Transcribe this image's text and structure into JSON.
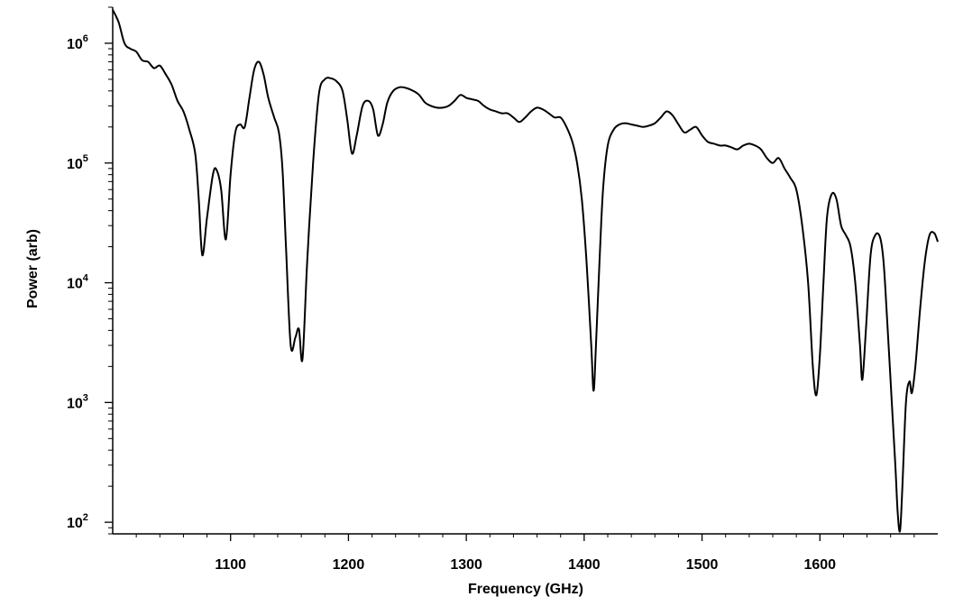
{
  "chart_data": {
    "type": "line",
    "title": "",
    "xlabel": "Frequency (GHz)",
    "ylabel": "Power (arb)",
    "xlim": [
      1000,
      1700
    ],
    "ylim": [
      80,
      2000000
    ],
    "yscale": "log",
    "grid": false,
    "x_ticks": [
      1100,
      1200,
      1300,
      1400,
      1500,
      1600
    ],
    "x_tick_labels": [
      "1100",
      "1200",
      "1300",
      "1400",
      "1500",
      "1600"
    ],
    "y_ticks": [
      {
        "value": 100,
        "base": "10",
        "exp": "2"
      },
      {
        "value": 1000,
        "base": "10",
        "exp": "3"
      },
      {
        "value": 10000,
        "base": "10",
        "exp": "4"
      },
      {
        "value": 100000,
        "base": "10",
        "exp": "5"
      },
      {
        "value": 1000000,
        "base": "10",
        "exp": "6"
      }
    ],
    "series": [
      {
        "color": "#000000",
        "points": [
          [
            1000,
            1900000
          ],
          [
            1005,
            1500000
          ],
          [
            1010,
            1000000
          ],
          [
            1015,
            900000
          ],
          [
            1020,
            850000
          ],
          [
            1025,
            720000
          ],
          [
            1030,
            700000
          ],
          [
            1035,
            620000
          ],
          [
            1040,
            650000
          ],
          [
            1045,
            550000
          ],
          [
            1050,
            450000
          ],
          [
            1055,
            330000
          ],
          [
            1060,
            270000
          ],
          [
            1065,
            190000
          ],
          [
            1070,
            120000
          ],
          [
            1073,
            50000
          ],
          [
            1076,
            17000
          ],
          [
            1080,
            35000
          ],
          [
            1085,
            80000
          ],
          [
            1088,
            88000
          ],
          [
            1092,
            60000
          ],
          [
            1096,
            23000
          ],
          [
            1100,
            80000
          ],
          [
            1104,
            180000
          ],
          [
            1108,
            210000
          ],
          [
            1112,
            200000
          ],
          [
            1116,
            350000
          ],
          [
            1120,
            600000
          ],
          [
            1124,
            700000
          ],
          [
            1128,
            550000
          ],
          [
            1132,
            350000
          ],
          [
            1137,
            240000
          ],
          [
            1141,
            180000
          ],
          [
            1144,
            90000
          ],
          [
            1147,
            20000
          ],
          [
            1151,
            3000
          ],
          [
            1155,
            3500
          ],
          [
            1158,
            4100
          ],
          [
            1161,
            2300
          ],
          [
            1165,
            15000
          ],
          [
            1170,
            100000
          ],
          [
            1175,
            380000
          ],
          [
            1180,
            500000
          ],
          [
            1185,
            510000
          ],
          [
            1190,
            480000
          ],
          [
            1195,
            400000
          ],
          [
            1199,
            230000
          ],
          [
            1203,
            120000
          ],
          [
            1207,
            170000
          ],
          [
            1212,
            300000
          ],
          [
            1217,
            330000
          ],
          [
            1221,
            280000
          ],
          [
            1225,
            170000
          ],
          [
            1229,
            210000
          ],
          [
            1233,
            320000
          ],
          [
            1238,
            400000
          ],
          [
            1244,
            430000
          ],
          [
            1250,
            420000
          ],
          [
            1255,
            400000
          ],
          [
            1260,
            370000
          ],
          [
            1265,
            320000
          ],
          [
            1270,
            300000
          ],
          [
            1275,
            290000
          ],
          [
            1280,
            290000
          ],
          [
            1285,
            300000
          ],
          [
            1290,
            330000
          ],
          [
            1295,
            370000
          ],
          [
            1300,
            350000
          ],
          [
            1305,
            340000
          ],
          [
            1310,
            330000
          ],
          [
            1315,
            300000
          ],
          [
            1320,
            280000
          ],
          [
            1325,
            270000
          ],
          [
            1330,
            260000
          ],
          [
            1335,
            260000
          ],
          [
            1340,
            240000
          ],
          [
            1345,
            220000
          ],
          [
            1350,
            240000
          ],
          [
            1355,
            270000
          ],
          [
            1360,
            290000
          ],
          [
            1365,
            280000
          ],
          [
            1370,
            260000
          ],
          [
            1375,
            240000
          ],
          [
            1380,
            240000
          ],
          [
            1385,
            200000
          ],
          [
            1390,
            150000
          ],
          [
            1394,
            100000
          ],
          [
            1398,
            50000
          ],
          [
            1402,
            15000
          ],
          [
            1406,
            3000
          ],
          [
            1408,
            1250
          ],
          [
            1410,
            3000
          ],
          [
            1413,
            15000
          ],
          [
            1416,
            60000
          ],
          [
            1420,
            140000
          ],
          [
            1425,
            190000
          ],
          [
            1430,
            210000
          ],
          [
            1435,
            215000
          ],
          [
            1440,
            210000
          ],
          [
            1445,
            205000
          ],
          [
            1450,
            200000
          ],
          [
            1455,
            205000
          ],
          [
            1460,
            215000
          ],
          [
            1465,
            240000
          ],
          [
            1470,
            270000
          ],
          [
            1475,
            250000
          ],
          [
            1480,
            210000
          ],
          [
            1485,
            180000
          ],
          [
            1490,
            190000
          ],
          [
            1495,
            200000
          ],
          [
            1500,
            170000
          ],
          [
            1505,
            150000
          ],
          [
            1510,
            145000
          ],
          [
            1515,
            140000
          ],
          [
            1520,
            140000
          ],
          [
            1525,
            135000
          ],
          [
            1530,
            130000
          ],
          [
            1535,
            140000
          ],
          [
            1540,
            145000
          ],
          [
            1545,
            140000
          ],
          [
            1550,
            130000
          ],
          [
            1555,
            110000
          ],
          [
            1560,
            100000
          ],
          [
            1565,
            110000
          ],
          [
            1570,
            90000
          ],
          [
            1575,
            75000
          ],
          [
            1580,
            60000
          ],
          [
            1585,
            30000
          ],
          [
            1590,
            10000
          ],
          [
            1594,
            2000
          ],
          [
            1597,
            1150
          ],
          [
            1600,
            2500
          ],
          [
            1603,
            10000
          ],
          [
            1606,
            35000
          ],
          [
            1610,
            55000
          ],
          [
            1614,
            50000
          ],
          [
            1618,
            30000
          ],
          [
            1622,
            25000
          ],
          [
            1626,
            20000
          ],
          [
            1630,
            10000
          ],
          [
            1634,
            3000
          ],
          [
            1636,
            1550
          ],
          [
            1639,
            4000
          ],
          [
            1643,
            17000
          ],
          [
            1647,
            25000
          ],
          [
            1651,
            24000
          ],
          [
            1654,
            15000
          ],
          [
            1657,
            5000
          ],
          [
            1661,
            1000
          ],
          [
            1664,
            300
          ],
          [
            1666,
            120
          ],
          [
            1668,
            85
          ],
          [
            1670,
            200
          ],
          [
            1673,
            1000
          ],
          [
            1676,
            1500
          ],
          [
            1678,
            1200
          ],
          [
            1681,
            2000
          ],
          [
            1685,
            6000
          ],
          [
            1689,
            15000
          ],
          [
            1693,
            25000
          ],
          [
            1697,
            26000
          ],
          [
            1700,
            22000
          ]
        ]
      }
    ]
  }
}
